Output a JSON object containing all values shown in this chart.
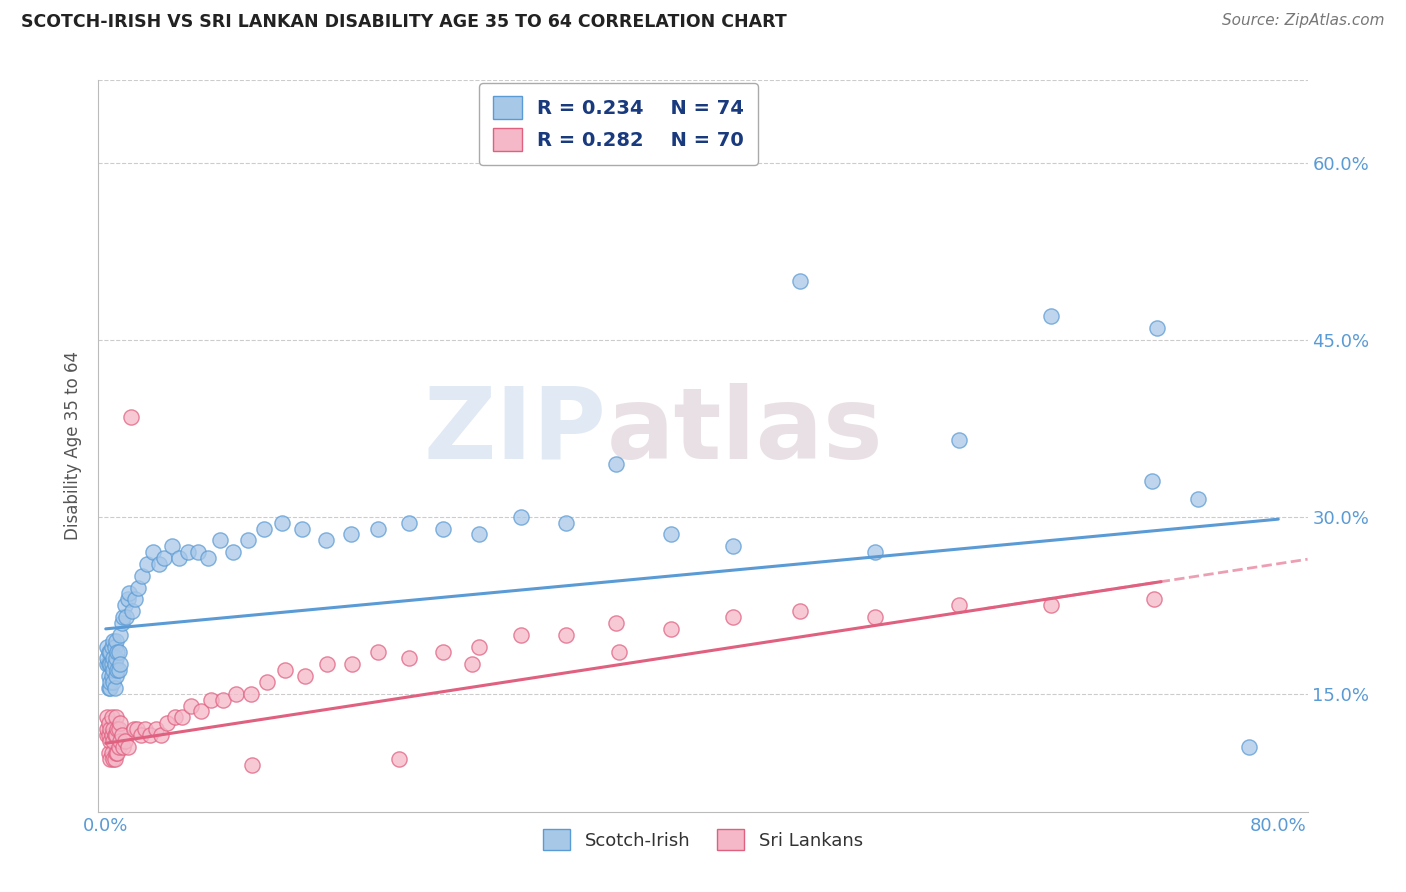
{
  "title": "SCOTCH-IRISH VS SRI LANKAN DISABILITY AGE 35 TO 64 CORRELATION CHART",
  "source_text": "Source: ZipAtlas.com",
  "ylabel": "Disability Age 35 to 64",
  "xlabel": "",
  "xlim": [
    -0.005,
    0.82
  ],
  "ylim": [
    0.05,
    0.67
  ],
  "xticks": [
    0.0,
    0.1,
    0.2,
    0.3,
    0.4,
    0.5,
    0.6,
    0.7,
    0.8
  ],
  "xticklabels": [
    "0.0%",
    "",
    "",
    "",
    "",
    "",
    "",
    "",
    "80.0%"
  ],
  "yticks": [
    0.15,
    0.3,
    0.45,
    0.6
  ],
  "yticklabels": [
    "15.0%",
    "30.0%",
    "45.0%",
    "60.0%"
  ],
  "series1_label": "Scotch-Irish",
  "series1_R": "R = 0.234",
  "series1_N": "N = 74",
  "series1_color": "#A8C8E8",
  "series1_edge_color": "#5B9BD5",
  "series2_label": "Sri Lankans",
  "series2_R": "R = 0.282",
  "series2_N": "N = 70",
  "series2_color": "#F4B8C8",
  "series2_edge_color": "#E06080",
  "trend1_color": "#5B9BD5",
  "trend2_color": "#E06080",
  "watermark_zip": "ZIP",
  "watermark_atlas": "atlas",
  "background_color": "#ffffff",
  "grid_color": "#cccccc",
  "title_color": "#222222",
  "legend_text_color": "#1a3a7e",
  "tick_color": "#5B9BD5",
  "trend1_x0": 0.0,
  "trend1_y0": 0.205,
  "trend1_x1": 0.8,
  "trend1_y1": 0.298,
  "trend2_x0": 0.0,
  "trend2_y0": 0.108,
  "trend2_x1": 0.72,
  "trend2_y1": 0.245,
  "trend2_dash_x0": 0.6,
  "trend2_dash_x1": 0.82,
  "series1_x": [
    0.001,
    0.001,
    0.001,
    0.002,
    0.002,
    0.002,
    0.002,
    0.003,
    0.003,
    0.003,
    0.003,
    0.004,
    0.004,
    0.004,
    0.005,
    0.005,
    0.005,
    0.005,
    0.006,
    0.006,
    0.006,
    0.007,
    0.007,
    0.007,
    0.008,
    0.008,
    0.009,
    0.009,
    0.01,
    0.01,
    0.011,
    0.012,
    0.013,
    0.014,
    0.015,
    0.016,
    0.018,
    0.02,
    0.022,
    0.025,
    0.028,
    0.032,
    0.036,
    0.04,
    0.045,
    0.05,
    0.056,
    0.063,
    0.07,
    0.078,
    0.087,
    0.097,
    0.108,
    0.12,
    0.134,
    0.15,
    0.167,
    0.186,
    0.207,
    0.23,
    0.255,
    0.283,
    0.314,
    0.348,
    0.386,
    0.428,
    0.474,
    0.525,
    0.582,
    0.645,
    0.714,
    0.717,
    0.745,
    0.78
  ],
  "series1_y": [
    0.175,
    0.18,
    0.19,
    0.155,
    0.165,
    0.175,
    0.185,
    0.155,
    0.16,
    0.175,
    0.185,
    0.165,
    0.175,
    0.19,
    0.16,
    0.17,
    0.18,
    0.195,
    0.155,
    0.175,
    0.19,
    0.165,
    0.18,
    0.195,
    0.17,
    0.185,
    0.17,
    0.185,
    0.175,
    0.2,
    0.21,
    0.215,
    0.225,
    0.215,
    0.23,
    0.235,
    0.22,
    0.23,
    0.24,
    0.25,
    0.26,
    0.27,
    0.26,
    0.265,
    0.275,
    0.265,
    0.27,
    0.27,
    0.265,
    0.28,
    0.27,
    0.28,
    0.29,
    0.295,
    0.29,
    0.28,
    0.285,
    0.29,
    0.295,
    0.29,
    0.285,
    0.3,
    0.295,
    0.345,
    0.285,
    0.275,
    0.5,
    0.27,
    0.365,
    0.47,
    0.33,
    0.46,
    0.315,
    0.105
  ],
  "series2_x": [
    0.001,
    0.001,
    0.001,
    0.002,
    0.002,
    0.002,
    0.003,
    0.003,
    0.003,
    0.004,
    0.004,
    0.004,
    0.005,
    0.005,
    0.005,
    0.006,
    0.006,
    0.007,
    0.007,
    0.007,
    0.008,
    0.008,
    0.009,
    0.009,
    0.01,
    0.01,
    0.011,
    0.012,
    0.013,
    0.015,
    0.017,
    0.019,
    0.021,
    0.024,
    0.027,
    0.03,
    0.034,
    0.038,
    0.042,
    0.047,
    0.052,
    0.058,
    0.065,
    0.072,
    0.08,
    0.089,
    0.099,
    0.11,
    0.122,
    0.136,
    0.151,
    0.168,
    0.186,
    0.207,
    0.23,
    0.255,
    0.283,
    0.314,
    0.348,
    0.386,
    0.428,
    0.474,
    0.525,
    0.582,
    0.645,
    0.715,
    0.25,
    0.35,
    0.1,
    0.2
  ],
  "series2_y": [
    0.115,
    0.12,
    0.13,
    0.1,
    0.115,
    0.125,
    0.095,
    0.11,
    0.12,
    0.1,
    0.115,
    0.13,
    0.095,
    0.11,
    0.12,
    0.095,
    0.115,
    0.1,
    0.115,
    0.13,
    0.1,
    0.12,
    0.105,
    0.12,
    0.11,
    0.125,
    0.115,
    0.105,
    0.11,
    0.105,
    0.385,
    0.12,
    0.12,
    0.115,
    0.12,
    0.115,
    0.12,
    0.115,
    0.125,
    0.13,
    0.13,
    0.14,
    0.135,
    0.145,
    0.145,
    0.15,
    0.15,
    0.16,
    0.17,
    0.165,
    0.175,
    0.175,
    0.185,
    0.18,
    0.185,
    0.19,
    0.2,
    0.2,
    0.21,
    0.205,
    0.215,
    0.22,
    0.215,
    0.225,
    0.225,
    0.23,
    0.175,
    0.185,
    0.09,
    0.095
  ]
}
